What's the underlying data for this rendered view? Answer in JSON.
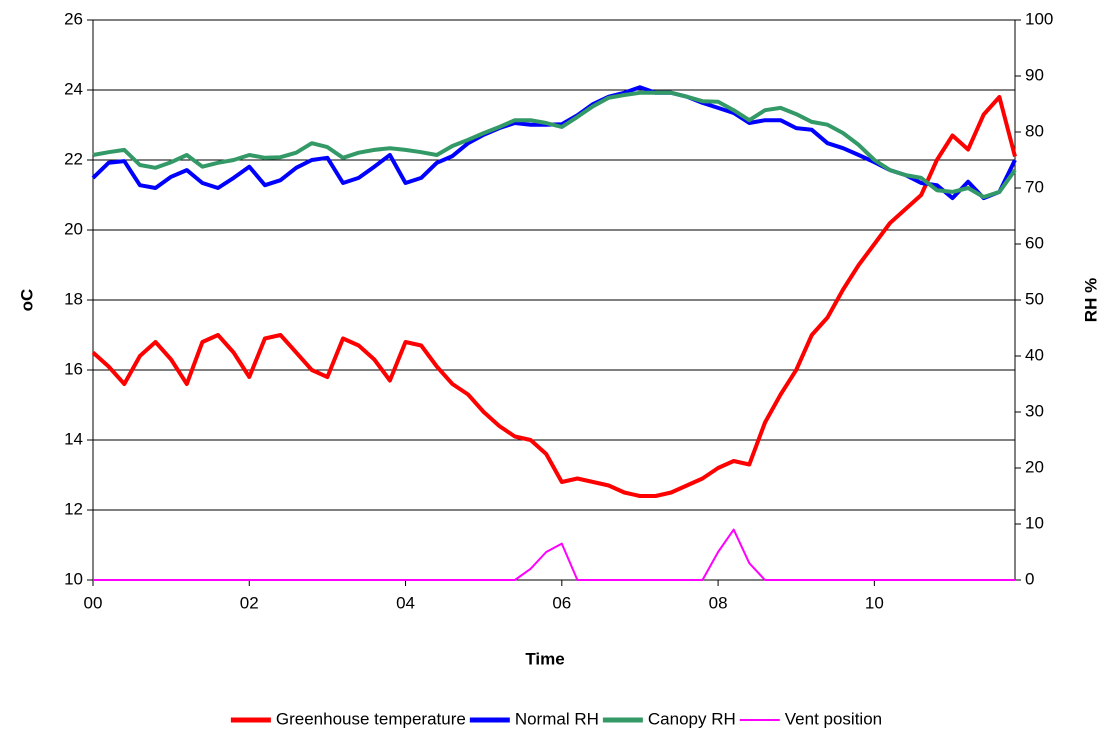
{
  "chart_data": {
    "type": "line",
    "x_label": "Time",
    "y_label": "oC",
    "y2_label": "RH %",
    "x": [
      0,
      0.2,
      0.4,
      0.6,
      0.8,
      1.0,
      1.2,
      1.4,
      1.6,
      1.8,
      2.0,
      2.2,
      2.4,
      2.6,
      2.8,
      3.0,
      3.2,
      3.4,
      3.6,
      3.8,
      4.0,
      4.2,
      4.4,
      4.6,
      4.8,
      5.0,
      5.2,
      5.4,
      5.6,
      5.8,
      6.0,
      6.2,
      6.4,
      6.6,
      6.8,
      7.0,
      7.2,
      7.4,
      7.6,
      7.8,
      8.0,
      8.2,
      8.4,
      8.6,
      8.8,
      9.0,
      9.2,
      9.4,
      9.6,
      9.8,
      10.0,
      10.2,
      10.4,
      10.6,
      10.8,
      11.0,
      11.2,
      11.4,
      11.6,
      11.8
    ],
    "xlim": [
      0,
      11.8
    ],
    "xticks": [
      {
        "value": 0,
        "label": "00"
      },
      {
        "value": 2,
        "label": "02"
      },
      {
        "value": 4,
        "label": "04"
      },
      {
        "value": 6,
        "label": "06"
      },
      {
        "value": 8,
        "label": "08"
      },
      10
    ],
    "ylim": [
      10,
      26
    ],
    "yticks": [
      10,
      12,
      14,
      16,
      18,
      20,
      22,
      24,
      26
    ],
    "y2lim": [
      0,
      100
    ],
    "y2ticks": [
      0,
      10,
      20,
      30,
      40,
      50,
      60,
      70,
      80,
      90,
      100
    ],
    "grid": true,
    "legend": "bottom",
    "series": [
      {
        "name": "Greenhouse temperature",
        "color": "#ff0000",
        "axis": "y",
        "values": [
          16.5,
          16.1,
          15.6,
          16.4,
          16.8,
          16.3,
          15.6,
          16.8,
          17.0,
          16.5,
          15.8,
          16.9,
          17.0,
          16.5,
          16.0,
          15.8,
          16.9,
          16.7,
          16.3,
          15.7,
          16.8,
          16.7,
          16.1,
          15.6,
          15.3,
          14.8,
          14.4,
          14.1,
          14.0,
          13.6,
          12.8,
          12.9,
          12.8,
          12.7,
          12.5,
          12.4,
          12.4,
          12.5,
          12.7,
          12.9,
          13.2,
          13.4,
          13.3,
          14.5,
          15.3,
          16.0,
          17.0,
          17.5,
          18.3,
          19.0,
          19.6,
          20.2,
          20.6,
          21.0,
          22.0,
          22.7,
          22.3,
          23.3,
          23.8,
          22.1
        ]
      },
      {
        "name": "Normal RH",
        "color": "#0000ff",
        "axis": "y2",
        "values": [
          71.8,
          74.5,
          74.8,
          70.5,
          70,
          72,
          73.2,
          70.9,
          70,
          71.8,
          73.8,
          70.5,
          71.4,
          73.6,
          75,
          75.4,
          70.9,
          71.8,
          73.8,
          75.9,
          70.9,
          71.8,
          74.5,
          75.7,
          78,
          79.5,
          80.7,
          81.6,
          81.3,
          81.3,
          81.4,
          83,
          85,
          86.3,
          87,
          88,
          87,
          87,
          86.3,
          85.2,
          84.3,
          83.4,
          81.6,
          82.1,
          82.1,
          80.7,
          80.4,
          78,
          77.1,
          75.9,
          74.6,
          73.2,
          72.3,
          70.9,
          70.5,
          68.2,
          71.1,
          68.2,
          69.3,
          75
        ]
      },
      {
        "name": "Canopy RH",
        "color": "#339966",
        "axis": "y2",
        "values": [
          75.9,
          76.4,
          76.8,
          74.1,
          73.6,
          74.6,
          75.9,
          73.8,
          74.5,
          75,
          75.9,
          75.4,
          75.5,
          76.3,
          78,
          77.3,
          75.4,
          76.3,
          76.8,
          77.1,
          76.8,
          76.4,
          75.9,
          77.5,
          78.6,
          79.8,
          80.9,
          82.1,
          82.1,
          81.6,
          80.9,
          82.7,
          84.6,
          86.1,
          86.6,
          87,
          87,
          87,
          86.3,
          85.5,
          85.4,
          83.9,
          82.1,
          83.9,
          84.3,
          83.2,
          81.8,
          81.3,
          79.8,
          77.7,
          75,
          73.2,
          72.3,
          71.8,
          69.6,
          69.3,
          70,
          68.4,
          69.3,
          73.2
        ]
      },
      {
        "name": "Vent position",
        "color": "#ff00ff",
        "axis": "y2",
        "values": [
          0,
          0,
          0,
          0,
          0,
          0,
          0,
          0,
          0,
          0,
          0,
          0,
          0,
          0,
          0,
          0,
          0,
          0,
          0,
          0,
          0,
          0,
          0,
          0,
          0,
          0,
          0,
          0,
          2,
          5,
          6.5,
          0,
          0,
          0,
          0,
          0,
          0,
          0,
          0,
          0,
          5,
          9,
          3,
          0,
          0,
          0,
          0,
          0,
          0,
          0,
          0,
          0,
          0,
          0,
          0,
          0,
          0,
          0,
          0,
          0
        ]
      }
    ]
  }
}
